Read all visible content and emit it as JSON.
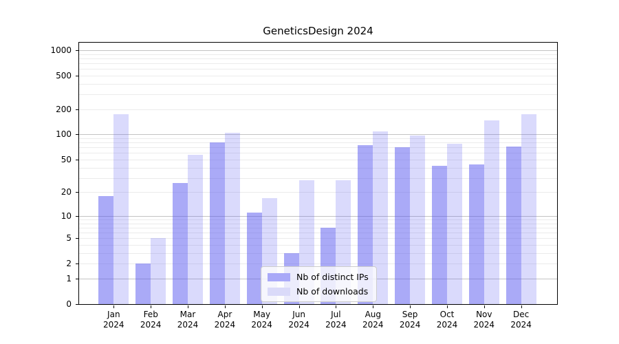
{
  "title": "GeneticsDesign 2024",
  "legend": {
    "items": [
      {
        "label": "Nb of distinct IPs",
        "series_key": "ips"
      },
      {
        "label": "Nb of downloads",
        "series_key": "downloads"
      }
    ],
    "position": "lower center inside plot"
  },
  "colors": {
    "ips_bar": "rgba(85,85,240,0.5)",
    "downloads_bar": "rgba(85,85,240,0.22)",
    "ips_swatch": "#a9a9f8",
    "downloads_swatch": "#dadaf9",
    "grid_major": "#c3c3c3",
    "grid_minor": "#ebebeb",
    "frame": "#000000",
    "text": "#000000"
  },
  "chart_data": {
    "type": "bar",
    "title": "GeneticsDesign 2024",
    "categories": [
      "Jan",
      "Feb",
      "Mar",
      "Apr",
      "May",
      "Jun",
      "Jul",
      "Aug",
      "Sep",
      "Oct",
      "Nov",
      "Dec"
    ],
    "x_tick_second_line": "2024",
    "series": [
      {
        "name": "Nb of distinct IPs",
        "values": [
          18,
          2,
          26,
          80,
          11,
          3,
          7,
          75,
          70,
          42,
          44,
          72
        ]
      },
      {
        "name": "Nb of downloads",
        "values": [
          175,
          5,
          57,
          105,
          17,
          28,
          28,
          108,
          97,
          78,
          148,
          174
        ]
      }
    ],
    "xlabel": "",
    "ylabel": "",
    "y_scale": "log10(1+x)",
    "y_ticks": [
      0,
      1,
      2,
      5,
      10,
      20,
      50,
      100,
      200,
      500,
      1000
    ],
    "y_minor_gridlines": [
      2,
      3,
      4,
      5,
      6,
      7,
      8,
      9,
      20,
      30,
      40,
      50,
      60,
      70,
      80,
      90,
      200,
      300,
      400,
      500,
      600,
      700,
      800,
      900
    ],
    "y_major_gridlines": [
      1,
      10,
      100,
      1000
    ],
    "ylim": [
      0,
      1226
    ],
    "grid": "horizontal, major and minor",
    "legend_position": "lower center"
  }
}
